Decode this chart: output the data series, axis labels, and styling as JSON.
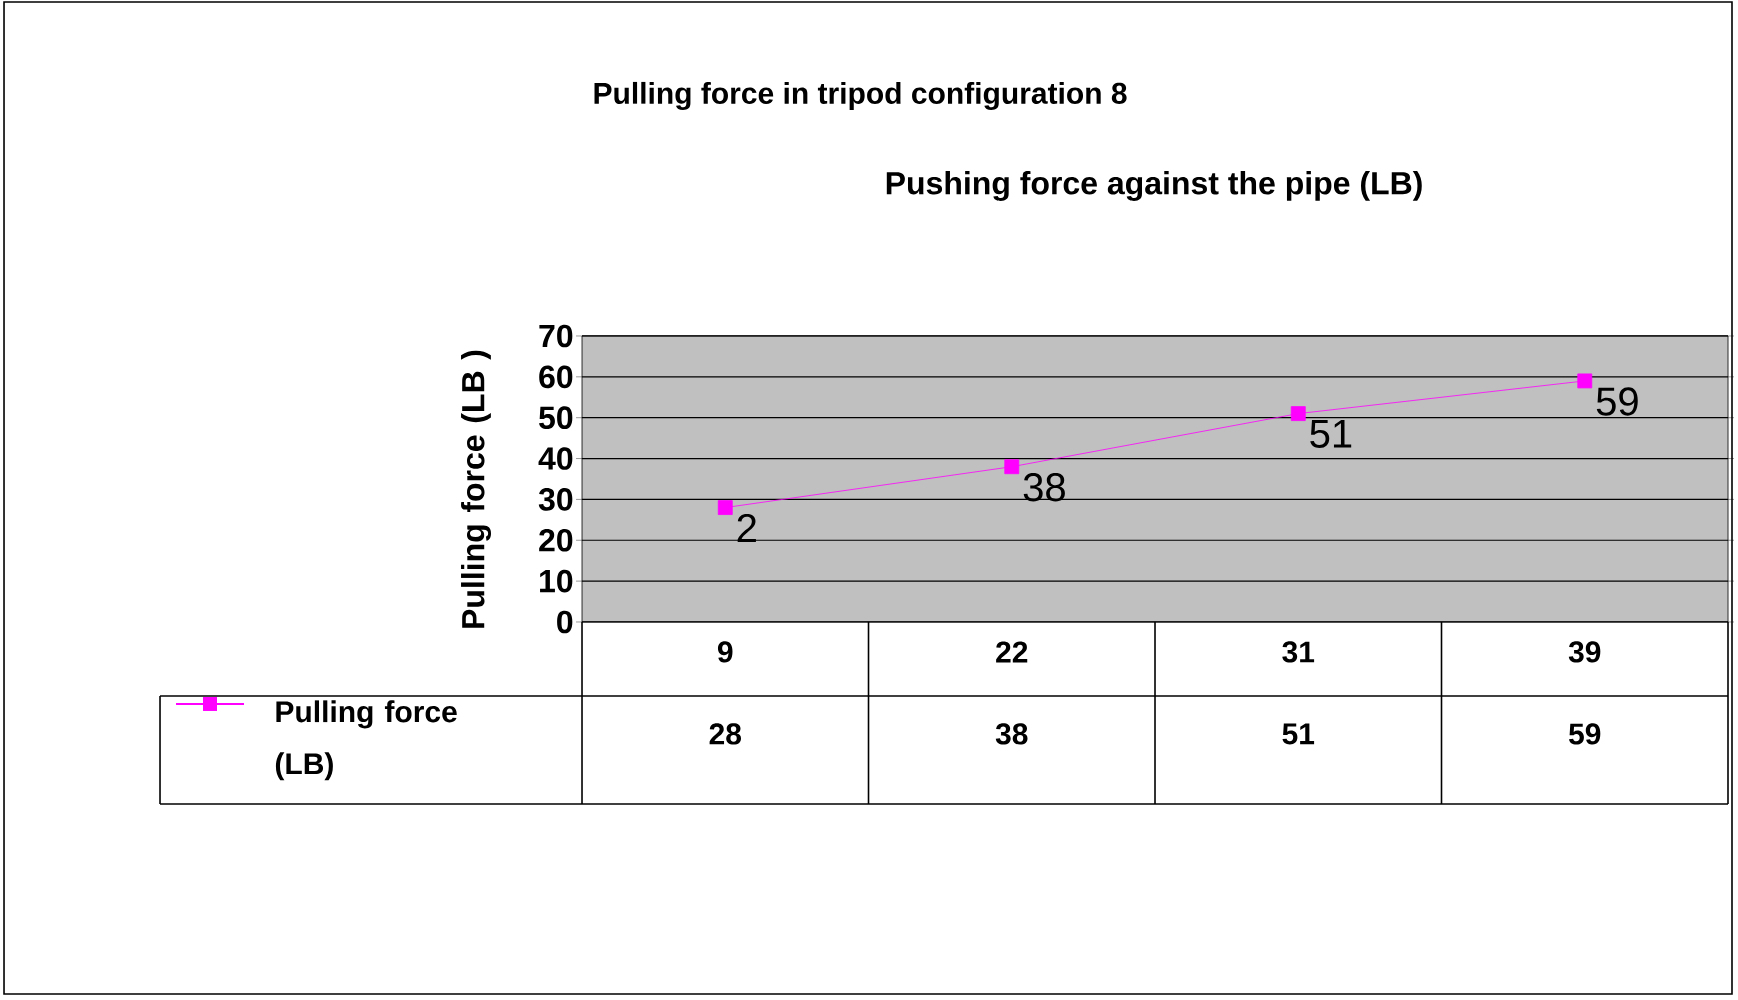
{
  "chart_data": {
    "type": "line",
    "title": "Pulling force in tripod configuration 8",
    "xlabel": "Pushing force against the pipe (LB)",
    "ylabel": "Pulling force (LB )",
    "categories": [
      "9",
      "22",
      "31",
      "39"
    ],
    "series": [
      {
        "name": "Pulling force (LB)",
        "color": "#ff00ff",
        "values": [
          28,
          38,
          51,
          59
        ],
        "value_labels": [
          "28",
          "38",
          "51",
          "59"
        ]
      }
    ],
    "annotations": [
      {
        "text": "2",
        "x": "9",
        "y": 28
      },
      {
        "text": "38",
        "x": "22",
        "y": 38
      },
      {
        "text": "51",
        "x": "31",
        "y": 51
      },
      {
        "text": "59",
        "x": "39",
        "y": 59
      }
    ],
    "ylim": [
      0,
      70
    ],
    "yticks": [
      0,
      10,
      20,
      30,
      40,
      50,
      60,
      70
    ],
    "grid": "y",
    "legend": "bottom left",
    "marker": "square",
    "line_style": "solid"
  }
}
